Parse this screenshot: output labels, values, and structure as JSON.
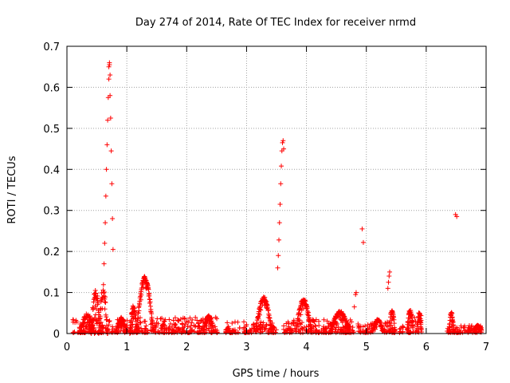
{
  "chart_data": {
    "type": "scatter",
    "title": "Day 274 of 2014, Rate Of TEC Index for receiver nrmd",
    "xlabel": "GPS time / hours",
    "ylabel": "ROTI / TECUs",
    "xlim": [
      0,
      7
    ],
    "ylim": [
      0,
      0.7
    ],
    "x_ticks": [
      "0",
      "1",
      "2",
      "3",
      "4",
      "5",
      "6",
      "7"
    ],
    "y_ticks": [
      "0",
      "0.1",
      "0.2",
      "0.3",
      "0.4",
      "0.5",
      "0.6",
      "0.7"
    ],
    "grid": true,
    "marker": "+",
    "color": "#ff0000",
    "series": [
      {
        "points": [
          [
            0.62,
            0.17
          ],
          [
            0.63,
            0.22
          ],
          [
            0.64,
            0.27
          ],
          [
            0.65,
            0.335
          ],
          [
            0.66,
            0.4
          ],
          [
            0.67,
            0.46
          ],
          [
            0.68,
            0.52
          ],
          [
            0.69,
            0.575
          ],
          [
            0.7,
            0.62
          ],
          [
            0.7,
            0.65
          ],
          [
            0.71,
            0.66
          ],
          [
            0.71,
            0.655
          ],
          [
            0.72,
            0.63
          ],
          [
            0.72,
            0.58
          ],
          [
            0.73,
            0.525
          ],
          [
            0.74,
            0.445
          ],
          [
            0.75,
            0.365
          ],
          [
            0.76,
            0.28
          ],
          [
            0.77,
            0.205
          ],
          [
            3.52,
            0.16
          ],
          [
            3.53,
            0.19
          ],
          [
            3.54,
            0.228
          ],
          [
            3.55,
            0.27
          ],
          [
            3.56,
            0.315
          ],
          [
            3.57,
            0.365
          ],
          [
            3.58,
            0.408
          ],
          [
            3.59,
            0.445
          ],
          [
            3.6,
            0.465
          ],
          [
            3.61,
            0.47
          ],
          [
            3.62,
            0.45
          ],
          [
            4.93,
            0.255
          ],
          [
            4.95,
            0.222
          ],
          [
            6.49,
            0.29
          ],
          [
            6.51,
            0.285
          ],
          [
            4.8,
            0.065
          ],
          [
            4.82,
            0.095
          ],
          [
            4.83,
            0.1
          ],
          [
            5.36,
            0.11
          ],
          [
            5.37,
            0.125
          ],
          [
            5.38,
            0.14
          ],
          [
            5.39,
            0.15
          ]
        ],
        "bumps": [
          [
            0.22,
            0.46,
            0.05,
            0.03
          ],
          [
            0.4,
            0.56,
            0.11,
            0.065
          ],
          [
            0.53,
            0.68,
            0.12,
            0.08
          ],
          [
            0.82,
            1.0,
            0.04,
            0.02
          ],
          [
            1.05,
            1.17,
            0.07,
            0.04
          ],
          [
            1.16,
            1.44,
            0.14,
            0.02
          ],
          [
            2.28,
            2.45,
            0.045,
            0.015
          ],
          [
            3.15,
            3.42,
            0.09,
            0.02
          ],
          [
            3.82,
            4.08,
            0.085,
            0.02
          ],
          [
            4.4,
            4.72,
            0.055,
            0.02
          ],
          [
            5.1,
            5.28,
            0.035,
            0.015
          ],
          [
            5.38,
            5.48,
            0.06,
            0.03
          ],
          [
            5.68,
            5.78,
            0.06,
            0.02
          ],
          [
            5.85,
            5.92,
            0.055,
            0.02
          ],
          [
            6.38,
            6.46,
            0.055,
            0.025
          ],
          [
            6.8,
            6.92,
            0.02,
            0.005
          ]
        ],
        "baseline_segments": [
          [
            0.1,
            2.52,
            0.002,
            0.04
          ],
          [
            2.65,
            3.5,
            0.002,
            0.03
          ],
          [
            3.62,
            4.8,
            0.002,
            0.035
          ],
          [
            4.86,
            5.1,
            0.002,
            0.025
          ],
          [
            5.3,
            5.48,
            0.002,
            0.03
          ],
          [
            5.55,
            5.62,
            0.002,
            0.02
          ],
          [
            5.68,
            5.92,
            0.002,
            0.045
          ],
          [
            6.35,
            6.93,
            0.002,
            0.02
          ]
        ]
      }
    ]
  }
}
